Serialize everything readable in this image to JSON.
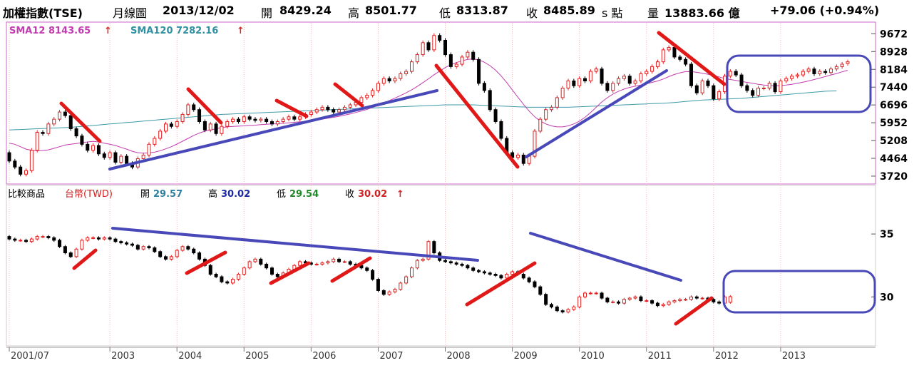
{
  "header": {
    "symbol": "加權指數(TSE)",
    "period": "月線圖",
    "date": "2013/12/02",
    "open_label": "開",
    "open": "8429.24",
    "high_label": "高",
    "high": "8501.77",
    "low_label": "低",
    "low": "8313.87",
    "close_label": "收",
    "close": "8485.89",
    "close_suffix": "s 點",
    "volume_label": "量",
    "volume": "13883.66 億",
    "change": "+79.06 (+0.94%)"
  },
  "upper_legend": {
    "sma12_label": "SMA12 8143.65",
    "sma120_label": "SMA120 7282.16",
    "arrow": "↑"
  },
  "lower_legend": {
    "compare_label": "比較商品",
    "name": "台幣(TWD)",
    "open_label": "開",
    "open": "29.57",
    "high_label": "高",
    "high": "30.02",
    "low_label": "低",
    "low": "29.54",
    "close_label": "收",
    "close": "30.02",
    "arrow": "↑"
  },
  "chart_data": [
    {
      "type": "candlestick",
      "name": "加權指數(TSE) 月線圖",
      "x_start": "2001-07",
      "y_ticks": [
        "9672",
        "8928",
        "8184",
        "7440",
        "6696",
        "5952",
        "5208",
        "4464",
        "3720"
      ],
      "ylim": [
        3450,
        10100
      ],
      "close": [
        4350,
        4100,
        3800,
        3950,
        4800,
        5550,
        5500,
        5900,
        6100,
        6400,
        6250,
        5700,
        5400,
        5050,
        4800,
        5000,
        4650,
        4500,
        4700,
        4300,
        4550,
        4250,
        4100,
        4450,
        4600,
        5050,
        5300,
        5600,
        5900,
        5800,
        6000,
        6300,
        6700,
        6500,
        6000,
        5650,
        5900,
        5500,
        5800,
        6000,
        6100,
        6000,
        6200,
        6100,
        6050,
        6100,
        6000,
        5900,
        6000,
        6100,
        6200,
        6100,
        6200,
        6300,
        6400,
        6500,
        6600,
        6500,
        6400,
        6500,
        6600,
        6700,
        6800,
        7000,
        7100,
        7300,
        7600,
        7800,
        7700,
        7800,
        8000,
        8100,
        8500,
        8800,
        9300,
        9000,
        9600,
        9400,
        8800,
        8300,
        8400,
        8700,
        8900,
        8600,
        7600,
        7300,
        6500,
        6000,
        5300,
        4700,
        4500,
        4600,
        4250,
        4550,
        5600,
        6100,
        6500,
        6600,
        7000,
        7400,
        7700,
        7500,
        7800,
        7700,
        8100,
        8200,
        7600,
        7300,
        7600,
        7800,
        7900,
        7600,
        7700,
        8000,
        8100,
        8300,
        8500,
        9000,
        9100,
        8700,
        8600,
        8400,
        7500,
        7200,
        7700,
        7500,
        6950,
        7250,
        7900,
        8100,
        7950,
        7500,
        7300,
        7100,
        7400,
        7400,
        7600,
        7250,
        7700,
        7800,
        7900,
        7950,
        8100,
        8200,
        8000,
        8100,
        8050,
        8200,
        8300,
        8400,
        8500
      ],
      "open": [
        4700,
        4350,
        4100,
        3800,
        3950,
        4800,
        5550,
        5500,
        5900,
        6100,
        6400,
        6250,
        5700,
        5400,
        5050,
        4800,
        5000,
        4650,
        4500,
        4700,
        4300,
        4550,
        4250,
        4100,
        4450,
        4600,
        5050,
        5300,
        5600,
        5900,
        5800,
        6000,
        6300,
        6700,
        6500,
        6000,
        5650,
        5900,
        5500,
        5800,
        6000,
        6100,
        6000,
        6200,
        6100,
        6050,
        6100,
        6000,
        5900,
        6000,
        6100,
        6200,
        6100,
        6200,
        6300,
        6400,
        6500,
        6600,
        6500,
        6400,
        6500,
        6600,
        6700,
        6800,
        7000,
        7100,
        7300,
        7600,
        7800,
        7700,
        7800,
        8000,
        8100,
        8500,
        8800,
        9300,
        9000,
        9600,
        9400,
        8800,
        8300,
        8400,
        8700,
        8900,
        8600,
        7600,
        7300,
        6500,
        6000,
        5300,
        4700,
        4500,
        4600,
        4250,
        4550,
        5600,
        6100,
        6500,
        6600,
        7000,
        7400,
        7700,
        7500,
        7800,
        7700,
        8100,
        8200,
        7600,
        7300,
        7600,
        7800,
        7900,
        7600,
        7700,
        8000,
        8100,
        8300,
        8500,
        9000,
        9100,
        8700,
        8600,
        8400,
        7500,
        7200,
        7700,
        7500,
        6950,
        7250,
        7900,
        8100,
        7950,
        7500,
        7300,
        7100,
        7400,
        7400,
        7600,
        7250,
        7700,
        7800,
        7900,
        7950,
        8100,
        8200,
        8000,
        8100,
        8050,
        8200,
        8300,
        8429.24
      ],
      "sma12": [
        5100,
        5050,
        4950,
        4850,
        4800,
        4780,
        4790,
        4820,
        4880,
        4950,
        5020,
        5050,
        5080,
        5120,
        5150,
        5170,
        5150,
        5100,
        5050,
        5000,
        4920,
        4850,
        4760,
        4700,
        4680,
        4690,
        4720,
        4780,
        4860,
        4950,
        5060,
        5180,
        5300,
        5420,
        5520,
        5600,
        5650,
        5700,
        5750,
        5780,
        5800,
        5810,
        5820,
        5840,
        5850,
        5870,
        5890,
        5900,
        5910,
        5930,
        5950,
        5970,
        5990,
        6010,
        6040,
        6070,
        6100,
        6140,
        6180,
        6220,
        6270,
        6320,
        6380,
        6440,
        6510,
        6590,
        6680,
        6780,
        6880,
        6980,
        7090,
        7200,
        7330,
        7470,
        7630,
        7790,
        7960,
        8110,
        8260,
        8380,
        8470,
        8540,
        8600,
        8620,
        8580,
        8480,
        8340,
        8150,
        7910,
        7630,
        7320,
        7020,
        6720,
        6440,
        6200,
        6020,
        5900,
        5820,
        5780,
        5780,
        5820,
        5900,
        6020,
        6180,
        6380,
        6600,
        6820,
        7000,
        7150,
        7270,
        7360,
        7430,
        7480,
        7530,
        7580,
        7640,
        7700,
        7780,
        7880,
        7970,
        8040,
        8090,
        8090,
        8060,
        8020,
        7980,
        7930,
        7870,
        7800,
        7760,
        7720,
        7680,
        7640,
        7600,
        7560,
        7530,
        7510,
        7500,
        7510,
        7530,
        7560,
        7600,
        7650,
        7700,
        7760,
        7820,
        7880,
        7950,
        8010,
        8080,
        8143.65
      ],
      "sma120": [
        5650,
        5660,
        5670,
        5680,
        5690,
        5700,
        5710,
        5720,
        5730,
        5740,
        5750,
        5760,
        5780,
        5800,
        5820,
        5840,
        5860,
        5880,
        5900,
        5920,
        5940,
        5960,
        5980,
        6000,
        6020,
        6040,
        6060,
        6080,
        6100,
        6120,
        6140,
        6160,
        6180,
        6200,
        6220,
        6240,
        6260,
        6280,
        6300,
        6310,
        6320,
        6330,
        6340,
        6350,
        6360,
        6370,
        6380,
        6390,
        6400,
        6410,
        6420,
        6430,
        6440,
        6450,
        6460,
        6470,
        6480,
        6490,
        6500,
        6510,
        6520,
        6530,
        6540,
        6550,
        6560,
        6570,
        6580,
        6590,
        6600,
        6610,
        6620,
        6630,
        6640,
        6650,
        6660,
        6670,
        6680,
        6690,
        6700,
        6700,
        6700,
        6700,
        6700,
        6700,
        6690,
        6680,
        6670,
        6660,
        6650,
        6640,
        6630,
        6620,
        6610,
        6600,
        6600,
        6600,
        6600,
        6600,
        6600,
        6600,
        6600,
        6610,
        6620,
        6630,
        6640,
        6650,
        6660,
        6670,
        6680,
        6690,
        6700,
        6710,
        6720,
        6730,
        6740,
        6750,
        6760,
        6770,
        6780,
        6800,
        6820,
        6840,
        6860,
        6880,
        6900,
        6910,
        6920,
        6930,
        6940,
        6950,
        6960,
        6970,
        6990,
        7010,
        7030,
        7050,
        7070,
        7090,
        7110,
        7130,
        7150,
        7170,
        7190,
        7210,
        7230,
        7250,
        7270,
        7280,
        7282.16
      ]
    },
    {
      "type": "candlestick",
      "name": "台幣(TWD)",
      "x_start": "2001-07",
      "x_ticks": [
        "2001/07",
        "2003",
        "2004",
        "2005",
        "2006",
        "2007",
        "2008",
        "2009",
        "2010",
        "2011",
        "2012",
        "2013"
      ],
      "y_ticks": [
        "35",
        "30"
      ],
      "ylim": [
        26.5,
        37.5
      ],
      "close": [
        34.6,
        34.5,
        34.5,
        34.4,
        34.6,
        34.8,
        34.8,
        34.7,
        34.5,
        34.0,
        33.5,
        33.2,
        33.8,
        34.5,
        34.7,
        34.7,
        34.6,
        34.7,
        34.6,
        34.4,
        34.3,
        34.2,
        34.1,
        33.8,
        34.0,
        33.9,
        33.6,
        33.2,
        33.0,
        33.2,
        33.7,
        34.0,
        33.8,
        33.5,
        33.0,
        32.5,
        31.8,
        31.6,
        31.2,
        31.1,
        31.4,
        31.8,
        32.3,
        32.8,
        33.0,
        32.6,
        32.3,
        31.8,
        31.6,
        31.9,
        32.2,
        32.5,
        32.8,
        32.7,
        32.6,
        32.6,
        32.7,
        32.8,
        33.0,
        32.8,
        32.8,
        32.6,
        32.5,
        32.3,
        32.1,
        31.4,
        30.5,
        30.2,
        30.4,
        30.6,
        31.1,
        31.6,
        32.3,
        32.9,
        33.0,
        34.4,
        33.5,
        32.9,
        32.8,
        32.7,
        32.6,
        32.5,
        32.3,
        32.1,
        32.0,
        31.9,
        31.8,
        31.7,
        31.5,
        31.8,
        32.0,
        31.8,
        31.5,
        31.2,
        30.8,
        30.2,
        29.4,
        29.2,
        28.9,
        28.8,
        29.0,
        29.2,
        30.0,
        30.3,
        30.3,
        30.3,
        29.9,
        29.6,
        29.6,
        29.5,
        29.8,
        29.9,
        30.0,
        29.7,
        29.7,
        29.5,
        29.3,
        29.4,
        29.6,
        29.7,
        29.8,
        29.8,
        30.0,
        29.9,
        29.9,
        29.8,
        29.6,
        29.5,
        30.0,
        30.02
      ],
      "open": [
        34.8,
        34.6,
        34.5,
        34.5,
        34.4,
        34.6,
        34.8,
        34.8,
        34.7,
        34.5,
        34.0,
        33.5,
        33.2,
        33.8,
        34.5,
        34.7,
        34.7,
        34.6,
        34.7,
        34.6,
        34.4,
        34.3,
        34.2,
        34.1,
        33.8,
        34.0,
        33.9,
        33.6,
        33.2,
        33.0,
        33.2,
        33.7,
        34.0,
        33.8,
        33.5,
        33.0,
        32.5,
        31.8,
        31.6,
        31.2,
        31.1,
        31.4,
        31.8,
        32.3,
        32.8,
        33.0,
        32.6,
        32.3,
        31.8,
        31.6,
        31.9,
        32.2,
        32.5,
        32.8,
        32.7,
        32.6,
        32.6,
        32.7,
        32.8,
        33.0,
        32.8,
        32.8,
        32.6,
        32.5,
        32.3,
        32.1,
        31.4,
        30.5,
        30.2,
        30.4,
        30.6,
        31.1,
        31.6,
        32.3,
        32.9,
        33.0,
        34.4,
        33.5,
        32.9,
        32.8,
        32.7,
        32.6,
        32.5,
        32.3,
        32.1,
        32.0,
        31.9,
        31.8,
        31.7,
        31.5,
        31.8,
        32.0,
        31.8,
        31.5,
        31.2,
        30.8,
        30.2,
        29.4,
        29.2,
        28.9,
        28.8,
        29.0,
        29.2,
        30.0,
        30.3,
        30.3,
        30.3,
        29.9,
        29.6,
        29.6,
        29.5,
        29.8,
        29.9,
        30.0,
        29.7,
        29.7,
        29.5,
        29.3,
        29.4,
        29.6,
        29.7,
        29.8,
        29.8,
        30.0,
        29.9,
        29.9,
        29.8,
        29.6,
        29.5,
        29.57
      ]
    }
  ]
}
